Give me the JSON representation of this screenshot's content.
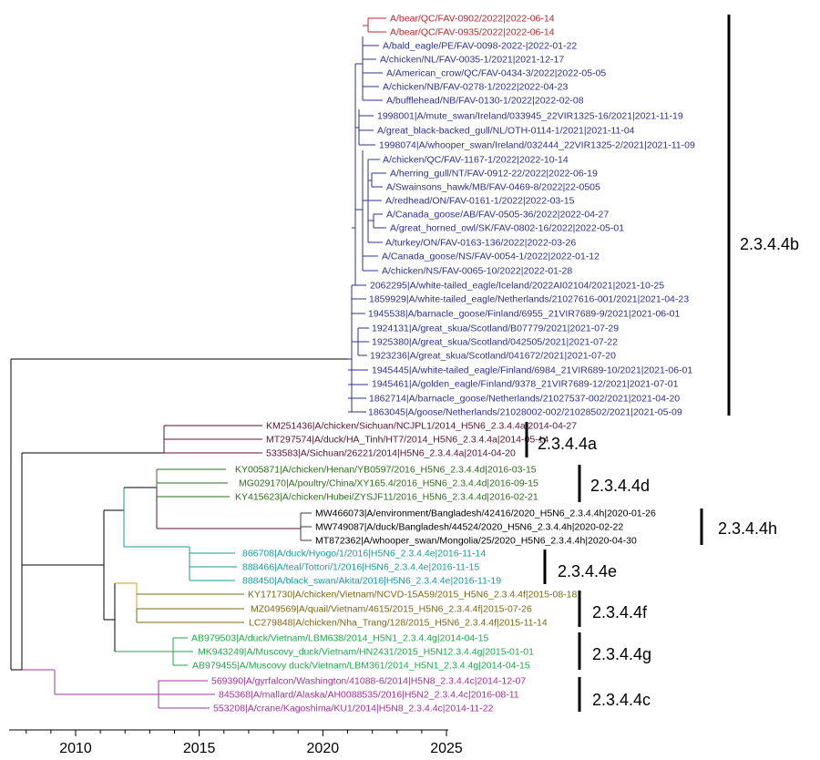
{
  "colors": {
    "red": "#c0272d",
    "navy": "#2e3192",
    "maroon": "#5a1236",
    "dkgreen": "#2e6e1e",
    "black": "#000000",
    "teal": "#1d9a9a",
    "olive": "#7a6a1a",
    "green": "#1faa4a",
    "purple": "#a0349a",
    "gold": "#d6a21e",
    "darkline": "#3b3b3b"
  },
  "axis": {
    "ticks": [
      "2010",
      "2015",
      "2020",
      "2025"
    ]
  },
  "clades": [
    {
      "label": "2.3.4.4b"
    },
    {
      "label": "2.3.4.4a"
    },
    {
      "label": "2.3.4.4d"
    },
    {
      "label": "2.3.4.4h"
    },
    {
      "label": "2.3.4.4e"
    },
    {
      "label": "2.3.4.4f"
    },
    {
      "label": "2.3.4.4g"
    },
    {
      "label": "2.3.4.4c"
    }
  ],
  "tips": [
    {
      "label": "A/bear/QC/FAV-0902/2022|2022-06-14",
      "color": "red"
    },
    {
      "label": "A/bear/QC/FAV-0935/2022|2022-06-14",
      "color": "red"
    },
    {
      "label": "A/bald_eagle/PE/FAV-0098-2022-|2022-01-22",
      "color": "navy"
    },
    {
      "label": "A/chicken/NL/FAV-0035-1/2021|2021-12-17",
      "color": "navy"
    },
    {
      "label": "A/American_crow/QC/FAV-0434-3/2022|2022-05-05",
      "color": "navy"
    },
    {
      "label": "A/chicken/NB/FAV-0278-1/2022|2022-04-23",
      "color": "navy"
    },
    {
      "label": "A/bufflehead/NB/FAV-0130-1/2022|2022-02-08",
      "color": "navy"
    },
    {
      "label": "1998001|A/mute_swan/Ireland/033945_22VIR1325-16/2021|2021-11-19",
      "color": "navy"
    },
    {
      "label": "A/great_black-backed_gull/NL/OTH-0114-1/2021|2021-11-04",
      "color": "navy"
    },
    {
      "label": "1998074|A/whooper_swan/Ireland/032444_22VIR1325-2/2021|2021-11-09",
      "color": "navy"
    },
    {
      "label": "A/chicken/QC/FAV-1167-1/2022|2022-10-14",
      "color": "navy"
    },
    {
      "label": "A/herring_gull/NT/FAV-0912-22/2022|2022-06-19",
      "color": "navy"
    },
    {
      "label": "A/Swainsons_hawk/MB/FAV-0469-8/2022|22-0505",
      "color": "navy"
    },
    {
      "label": "A/redhead/ON/FAV-0161-1/2022|2022-03-15",
      "color": "navy"
    },
    {
      "label": "A/Canada_goose/AB/FAV-0505-36/2022|2022-04-27",
      "color": "navy"
    },
    {
      "label": "A/great_horned_owl/SK/FAV-0802-16/2022|2022-05-01",
      "color": "navy"
    },
    {
      "label": "A/turkey/ON/FAV-0163-136/2022|2022-03-26",
      "color": "navy"
    },
    {
      "label": "A/Canada_goose/NS/FAV-0054-1/2022|2022-01-12",
      "color": "navy"
    },
    {
      "label": "A/chicken/NS/FAV-0065-10/2022|2022-01-28",
      "color": "navy"
    },
    {
      "label": "2062295|A/white-tailed_eagle/Iceland/2022AI02104/2021|2021-10-25",
      "color": "navy"
    },
    {
      "label": "1859929|A/white-tailed_eagle/Netherlands/21027616-001/2021|2021-04-23",
      "color": "navy"
    },
    {
      "label": "1945538|A/barnacle_goose/Finland/6955_21VIR7689-9/2021|2021-06-01",
      "color": "navy"
    },
    {
      "label": "1924131|A/great_skua/Scotland/B07779/2021|2021-07-29",
      "color": "navy"
    },
    {
      "label": "1925380|A/great_skua/Scotland/042505/2021|2021-07-22",
      "color": "navy"
    },
    {
      "label": "1923236|A/great_skua/Scotland/041672/2021|2021-07-20",
      "color": "navy"
    },
    {
      "label": "1945445|A/white-tailed_eagle/Finland/6984_21VIR689-10/2021|2021-06-01",
      "color": "navy"
    },
    {
      "label": "1945461|A/golden_eagle/Finland/9378_21VIR7689-12/2021|2021-07-01",
      "color": "navy"
    },
    {
      "label": "1862714|A/barnacle_goose/Netherlands/21027537-002/2021|2021-04-20",
      "color": "navy"
    },
    {
      "label": "1863045|A/goose/Netherlands/21028002-002/21028502/2021|2021-05-09",
      "color": "navy"
    },
    {
      "label": "KM251436|A/chicken/Sichuan/NCJPL1/2014_H5N6_2.3.4.4a|2014-04-27",
      "color": "maroon"
    },
    {
      "label": "MT297574|A/duck/HA_Tinh/HT7/2014_H5N6_2.3.4.4a|2014-05-14",
      "color": "maroon"
    },
    {
      "label": "533583|A/Sichuan/26221/2014|H5N6_2.3.4.4a|2014-04-20",
      "color": "maroon"
    },
    {
      "label": "KY005871|A/chicken/Henan/YB0597/2016_H5N6_2.3.4.4d|2016-03-15",
      "color": "dkgreen"
    },
    {
      "label": "MG029170|A/poultry/China/XY165.4/2016_H5N6_2.3.4.4d|2016-09-15",
      "color": "dkgreen"
    },
    {
      "label": "KY415623|A/chicken/Hubei/ZYSJF11/2016_H5N6_2.3.4.4d|2016-02-21",
      "color": "dkgreen"
    },
    {
      "label": "MW466073|A/environment/Bangladesh/42416/2020_H5N6_2.3.4.4h|2020-01-26",
      "color": "black"
    },
    {
      "label": "MW749087|A/duck/Bangladesh/44524/2020_H5N6_2.3.4.4h|2020-02-22",
      "color": "black"
    },
    {
      "label": "MT872362|A/whooper_swan/Mongolia/25/2020_H5N6_2.3.4.4h|2020-04-30",
      "color": "black"
    },
    {
      "label": "866708|A/duck/Hyogo/1/2016|H5N6_2.3.4.4e|2016-11-14",
      "color": "teal"
    },
    {
      "label": "888466|A/teal/Tottori/1/2016|H5N6_2.3.4.4e|2016-11-15",
      "color": "teal"
    },
    {
      "label": "888450|A/black_swan/Akita/2016|H5N6_2.3.4.4e|2016-11-19",
      "color": "teal"
    },
    {
      "label": "KY171730|A/chicken/Vietnam/NCVD-15A59/2015_H5N6_2.3.4.4f|2015-08-18",
      "color": "olive"
    },
    {
      "label": "MZ049569|A/quail/Vietnam/4615/2015_H5N6_2.3.4.4f|2015-07-26",
      "color": "olive"
    },
    {
      "label": "LC279848|A/chicken/Nha_Trang/128/2015_H5N6_2.3.4.4f|2015-11-14",
      "color": "olive"
    },
    {
      "label": "AB979503|A/duck/Vietnam/LBM638/2014_H5N1_2.3.4.4g|2014-04-15",
      "color": "green"
    },
    {
      "label": "MK943249|A/Muscovy_duck/Vietnam/HN2431/2015_H5N12.3.4.4g|2015-01-01",
      "color": "green"
    },
    {
      "label": "AB979455|A/Muscovy duck/Vietnam/LBM361/2014_H5N1_2.3.4.4g|2014-04-15",
      "color": "green"
    },
    {
      "label": "569390|A/gyrfalcon/Washington/41088-6/2014|H5N8_2.3.4.4c|2014-12-07",
      "color": "purple"
    },
    {
      "label": "845368|A/mallard/Alaska/AH0088535/2016|H5N2_2.3.4.4c|2016-08-11",
      "color": "purple"
    },
    {
      "label": "553208|A/crane/Kagoshima/KU1/2014|H5N8_2.3.4.4c|2014-11-22",
      "color": "purple"
    }
  ]
}
